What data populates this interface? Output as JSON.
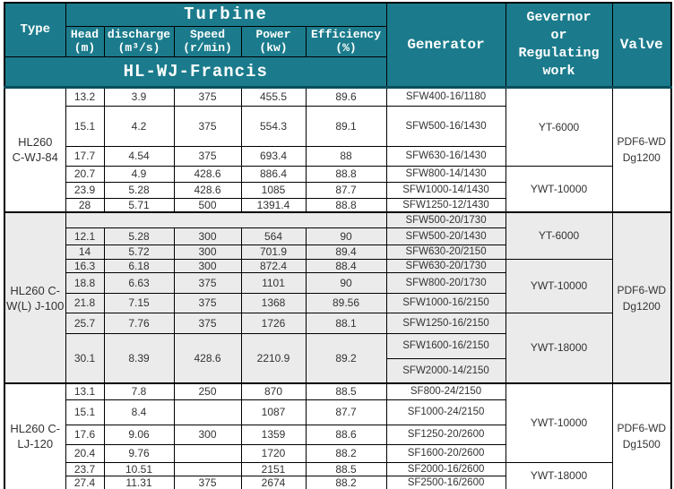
{
  "colors": {
    "header_bg": "#1b7b8c",
    "header_text": "#ffffff",
    "header_divider": "#0b4d5a",
    "grid_border": "#000000",
    "shaded_group_bg": "#ebebeb",
    "data_text": "#333333"
  },
  "table": {
    "header": {
      "type_label": "Type",
      "turbine_label": "Turbine",
      "columns": [
        {
          "label": "Head",
          "unit": "(m)"
        },
        {
          "label": "discharge",
          "unit": "(m³/s)"
        },
        {
          "label": "Speed",
          "unit": "(r/min)"
        },
        {
          "label": "Power",
          "unit": "(kw)"
        },
        {
          "label": "Efficiency",
          "unit": "(%)"
        }
      ],
      "series_label": "HL-WJ-Francis",
      "generator_label": "Generator",
      "governor_label": "Gevernor or Regulating work",
      "valve_label": "Valve"
    },
    "groups": [
      {
        "type_lines": [
          "HL260",
          "C-WJ-84"
        ],
        "shaded": false,
        "rows": [
          {
            "h": 21,
            "turbine": {
              "cells": [
                "13.2",
                "3.9",
                "375",
                "455.5",
                "89.6"
              ]
            },
            "generator": "SFW400-16/1180",
            "governor": {
              "label": "YT-6000",
              "span": 3
            },
            "valve": {
              "lines": [
                "PDF6-WD",
                "Dg1200"
              ],
              "span": 6
            }
          },
          {
            "h": 45,
            "turbine": {
              "cells": [
                "15.1",
                "4.2",
                "375",
                "554.3",
                "89.1"
              ]
            },
            "generator": "SFW500-16/1430"
          },
          {
            "h": 22,
            "turbine": {
              "cells": [
                "17.7",
                "4.54",
                "375",
                "693.4",
                "88"
              ]
            },
            "generator": "SFW630-16/1430"
          },
          {
            "h": 18,
            "turbine": {
              "cells": [
                "20.7",
                "4.9",
                "428.6",
                "886.4",
                "88.8"
              ]
            },
            "generator": "SFW800-14/1430",
            "governor": {
              "label": "YWT-10000",
              "span": 3
            }
          },
          {
            "h": 18,
            "turbine": {
              "cells": [
                "23.9",
                "5.28",
                "428.6",
                "1085",
                "87.7"
              ]
            },
            "generator": "SFW1000-14/1430"
          },
          {
            "h": 16,
            "turbine": {
              "cells": [
                "28",
                "5.71",
                "500",
                "1391.4",
                "88.8"
              ]
            },
            "generator": "SFW1250-12/1430"
          }
        ]
      },
      {
        "type_lines": [
          "HL260 C-",
          "W(L) J-100"
        ],
        "shaded": true,
        "rows": [
          {
            "h": 17,
            "turbine": {
              "empty_span": 5
            },
            "generator": "SFW500-20/1730",
            "governor": {
              "label": "YT-6000",
              "span": 3
            },
            "valve": {
              "lines": [
                "PDF6-WD",
                "Dg1200"
              ],
              "span": 9
            }
          },
          {
            "h": 19,
            "turbine": {
              "cells": [
                "12.1",
                "5.28",
                "300",
                "564",
                "90"
              ]
            },
            "generator": "SFW500-20/1430"
          },
          {
            "h": 16,
            "turbine": {
              "cells": [
                "14",
                "5.72",
                "300",
                "701.9",
                "89.4"
              ]
            },
            "generator": "SFW630-20/2150"
          },
          {
            "h": 15,
            "turbine": {
              "cells": [
                "16.3",
                "6.18",
                "300",
                "872.4",
                "88.4"
              ]
            },
            "generator": "SFW630-20/1730",
            "governor": {
              "label": "YWT-10000",
              "span": 3
            }
          },
          {
            "h": 23,
            "turbine": {
              "cells": [
                "18.8",
                "6.63",
                "375",
                "1101",
                "90"
              ]
            },
            "generator": "SFW800-20/1730"
          },
          {
            "h": 22,
            "turbine": {
              "cells": [
                "21.8",
                "7.15",
                "375",
                "1368",
                "89.56"
              ]
            },
            "generator": "SFW1000-16/2150"
          },
          {
            "h": 23,
            "turbine": {
              "cells": [
                "25.7",
                "7.76",
                "375",
                "1726",
                "88.1"
              ]
            },
            "generator": "SFW1250-16/2150",
            "governor": {
              "label": "YWT-18000",
              "span": 3
            }
          },
          {
            "h": 28,
            "turbine": {
              "cells": [
                "30.1",
                "8.39",
                "428.6",
                "2210.9",
                "89.2"
              ],
              "rowspan": 2
            },
            "generator": "SFW1600-16/2150"
          },
          {
            "h": 28,
            "generator": "SFW2000-14/2150"
          }
        ]
      },
      {
        "type_lines": [
          "HL260 C-",
          "LJ-120"
        ],
        "shaded": false,
        "rows": [
          {
            "h": 18,
            "turbine": {
              "cells": [
                "13.1",
                "7.8",
                "250",
                "870",
                "88.5"
              ]
            },
            "generator": "SF800-24/2150",
            "governor": {
              "label": "YWT-10000",
              "span": 4
            },
            "valve": {
              "lines": [
                "PDF6-WD",
                "Dg1500"
              ],
              "span": 6
            }
          },
          {
            "h": 28,
            "turbine": {
              "cells": [
                "15.1",
                "8.4",
                "",
                "1087",
                "87.7"
              ]
            },
            "generator": "SF1000-24/2150"
          },
          {
            "h": 22,
            "turbine": {
              "cells": [
                "17.6",
                "9.06",
                "300",
                "1359",
                "88.6"
              ]
            },
            "generator": "SF1250-20/2600"
          },
          {
            "h": 20,
            "turbine": {
              "cells": [
                "20.4",
                "9.76",
                "",
                "1720",
                "88.2"
              ]
            },
            "generator": "SF1600-20/2600"
          },
          {
            "h": 15,
            "turbine": {
              "cells": [
                "23.7",
                "10.51",
                "",
                "2151",
                "88.5"
              ]
            },
            "generator": "SF2000-16/2600",
            "governor": {
              "label": "YWT-18000",
              "span": 2
            }
          },
          {
            "h": 15,
            "turbine": {
              "cells": [
                "27.4",
                "11.31",
                "375",
                "2674",
                "88.2"
              ]
            },
            "generator": "SF2500-16/2600"
          }
        ]
      }
    ]
  }
}
